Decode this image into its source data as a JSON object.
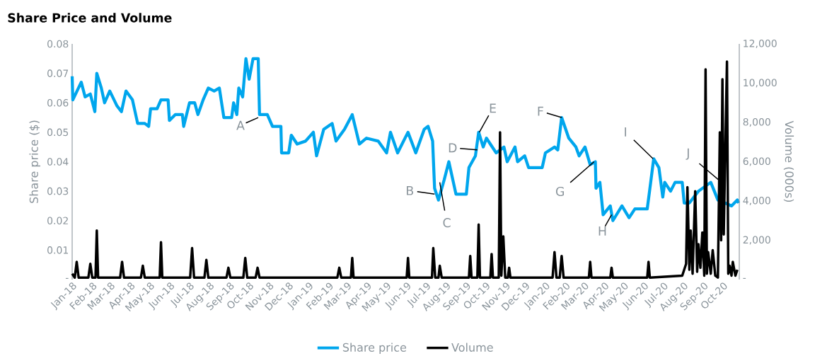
{
  "chart_data": {
    "type": "line",
    "title": "Share Price and Volume",
    "ylabel": "Share price ($)",
    "y2label": "Volume (000s)",
    "xlim": [
      "2018-01-01",
      "2020-10-26"
    ],
    "xticks": [
      {
        "value": "2018-01-01",
        "label": "Jan-18"
      },
      {
        "value": "2018-02-01",
        "label": "Feb-18"
      },
      {
        "value": "2018-03-01",
        "label": "Mar-18"
      },
      {
        "value": "2018-04-01",
        "label": "Apr-18"
      },
      {
        "value": "2018-05-01",
        "label": "May-18"
      },
      {
        "value": "2018-06-01",
        "label": "Jun-18"
      },
      {
        "value": "2018-07-01",
        "label": "Jul-18"
      },
      {
        "value": "2018-08-01",
        "label": "Aug-18"
      },
      {
        "value": "2018-09-01",
        "label": "Sep-18"
      },
      {
        "value": "2018-10-01",
        "label": "Oct-18"
      },
      {
        "value": "2018-11-01",
        "label": "Nov-18"
      },
      {
        "value": "2018-12-01",
        "label": "Dec-18"
      },
      {
        "value": "2019-01-01",
        "label": "Jan-19"
      },
      {
        "value": "2019-02-01",
        "label": "Feb-19"
      },
      {
        "value": "2019-03-01",
        "label": "Mar-19"
      },
      {
        "value": "2019-04-01",
        "label": "Apr-19"
      },
      {
        "value": "2019-05-01",
        "label": "May-19"
      },
      {
        "value": "2019-06-01",
        "label": "Jun-19"
      },
      {
        "value": "2019-07-01",
        "label": "Jul-19"
      },
      {
        "value": "2019-08-01",
        "label": "Aug-19"
      },
      {
        "value": "2019-09-01",
        "label": "Sep-19"
      },
      {
        "value": "2019-10-01",
        "label": "Oct-19"
      },
      {
        "value": "2019-11-01",
        "label": "Nov-19"
      },
      {
        "value": "2019-12-01",
        "label": "Dec-19"
      },
      {
        "value": "2020-01-01",
        "label": "Jan-20"
      },
      {
        "value": "2020-02-01",
        "label": "Feb-20"
      },
      {
        "value": "2020-03-01",
        "label": "Mar-20"
      },
      {
        "value": "2020-04-01",
        "label": "Apr-20"
      },
      {
        "value": "2020-05-01",
        "label": "May-20"
      },
      {
        "value": "2020-06-01",
        "label": "Jun-20"
      },
      {
        "value": "2020-07-01",
        "label": "Jul-20"
      },
      {
        "value": "2020-08-01",
        "label": "Aug-20"
      },
      {
        "value": "2020-09-01",
        "label": "Sep-20"
      },
      {
        "value": "2020-10-01",
        "label": "Oct-20"
      }
    ],
    "ylim": [
      0,
      0.08
    ],
    "yticks": [
      {
        "value": 0,
        "label": "-"
      },
      0.01,
      0.02,
      0.03,
      0.04,
      0.05,
      0.06,
      0.07,
      0.08
    ],
    "y2lim": [
      0,
      12000
    ],
    "y2ticks": [
      {
        "value": 0,
        "label": "-"
      },
      {
        "value": 2000,
        "label": "2,000"
      },
      {
        "value": 4000,
        "label": "4,000"
      },
      {
        "value": 6000,
        "label": "6,000"
      },
      {
        "value": 8000,
        "label": "8,000"
      },
      {
        "value": 10000,
        "label": "10,000"
      },
      {
        "value": 12000,
        "label": "12,000"
      }
    ],
    "grid": false,
    "legend": "bottom",
    "series": [
      {
        "name": "Share price",
        "color": "#00a6ed",
        "x": [
          "2018-01-01",
          "2018-01-02",
          "2018-01-15",
          "2018-01-21",
          "2018-01-29",
          "2018-02-05",
          "2018-02-08",
          "2018-02-15",
          "2018-02-20",
          "2018-02-28",
          "2018-03-11",
          "2018-03-18",
          "2018-03-25",
          "2018-04-04",
          "2018-04-12",
          "2018-04-23",
          "2018-04-29",
          "2018-05-02",
          "2018-05-12",
          "2018-05-18",
          "2018-05-29",
          "2018-05-31",
          "2018-06-09",
          "2018-06-20",
          "2018-06-22",
          "2018-07-01",
          "2018-07-09",
          "2018-07-14",
          "2018-07-22",
          "2018-07-30",
          "2018-08-08",
          "2018-08-16",
          "2018-08-23",
          "2018-09-04",
          "2018-09-07",
          "2018-09-12",
          "2018-09-15",
          "2018-09-21",
          "2018-09-26",
          "2018-10-01",
          "2018-10-07",
          "2018-10-15",
          "2018-10-17",
          "2018-10-29",
          "2018-11-06",
          "2018-11-19",
          "2018-11-20",
          "2018-12-01",
          "2018-12-05",
          "2018-12-14",
          "2018-12-27",
          "2019-01-08",
          "2019-01-13",
          "2019-01-24",
          "2019-02-06",
          "2019-02-12",
          "2019-02-25",
          "2019-03-09",
          "2019-03-20",
          "2019-03-31",
          "2019-04-18",
          "2019-05-01",
          "2019-05-07",
          "2019-05-18",
          "2019-06-03",
          "2019-06-15",
          "2019-06-28",
          "2019-07-04",
          "2019-07-11",
          "2019-07-14",
          "2019-07-20",
          "2019-07-29",
          "2019-08-05",
          "2019-08-16",
          "2019-09-01",
          "2019-09-05",
          "2019-09-15",
          "2019-09-20",
          "2019-09-27",
          "2019-10-02",
          "2019-10-17",
          "2019-10-29",
          "2019-11-03",
          "2019-11-15",
          "2019-11-19",
          "2019-11-30",
          "2019-12-06",
          "2019-12-27",
          "2020-01-01",
          "2020-01-15",
          "2020-01-20",
          "2020-01-26",
          "2020-02-06",
          "2020-02-17",
          "2020-02-22",
          "2020-03-02",
          "2020-03-10",
          "2020-03-18",
          "2020-03-19",
          "2020-03-25",
          "2020-03-30",
          "2020-04-10",
          "2020-04-14",
          "2020-04-28",
          "2020-05-09",
          "2020-05-18",
          "2020-06-06",
          "2020-06-09",
          "2020-06-16",
          "2020-06-24",
          "2020-06-30",
          "2020-07-03",
          "2020-07-12",
          "2020-07-19",
          "2020-07-30",
          "2020-08-02",
          "2020-08-10",
          "2020-08-24",
          "2020-09-12",
          "2020-09-23",
          "2020-10-04",
          "2020-10-14",
          "2020-10-23",
          "2020-10-25"
        ],
        "values": [
          0.069,
          0.061,
          0.067,
          0.062,
          0.063,
          0.057,
          0.07,
          0.065,
          0.06,
          0.064,
          0.059,
          0.057,
          0.064,
          0.061,
          0.053,
          0.053,
          0.052,
          0.058,
          0.058,
          0.061,
          0.061,
          0.054,
          0.056,
          0.056,
          0.052,
          0.06,
          0.06,
          0.056,
          0.061,
          0.065,
          0.064,
          0.065,
          0.055,
          0.055,
          0.06,
          0.056,
          0.065,
          0.062,
          0.075,
          0.068,
          0.075,
          0.075,
          0.056,
          0.056,
          0.052,
          0.052,
          0.043,
          0.043,
          0.049,
          0.046,
          0.047,
          0.05,
          0.042,
          0.051,
          0.053,
          0.047,
          0.051,
          0.056,
          0.046,
          0.048,
          0.047,
          0.043,
          0.05,
          0.043,
          0.05,
          0.043,
          0.051,
          0.052,
          0.047,
          0.031,
          0.027,
          0.034,
          0.04,
          0.029,
          0.029,
          0.038,
          0.042,
          0.05,
          0.045,
          0.048,
          0.043,
          0.045,
          0.04,
          0.045,
          0.04,
          0.042,
          0.038,
          0.038,
          0.043,
          0.045,
          0.044,
          0.055,
          0.048,
          0.045,
          0.042,
          0.045,
          0.039,
          0.04,
          0.031,
          0.033,
          0.022,
          0.025,
          0.02,
          0.025,
          0.021,
          0.024,
          0.024,
          0.029,
          0.041,
          0.038,
          0.028,
          0.033,
          0.03,
          0.033,
          0.033,
          0.026,
          0.026,
          0.03,
          0.033,
          0.027,
          0.026,
          0.025,
          0.027,
          0.026
        ]
      },
      {
        "name": "Volume",
        "color": "#000000",
        "axis": "y2",
        "x": [
          "2018-01-01",
          "2018-01-05",
          "2018-01-08",
          "2018-01-11",
          "2018-01-26",
          "2018-01-29",
          "2018-02-01",
          "2018-02-06",
          "2018-02-08",
          "2018-02-10",
          "2018-03-16",
          "2018-03-19",
          "2018-03-22",
          "2018-04-17",
          "2018-04-20",
          "2018-04-23",
          "2018-05-16",
          "2018-05-18",
          "2018-05-20",
          "2018-07-02",
          "2018-07-05",
          "2018-07-08",
          "2018-07-24",
          "2018-07-27",
          "2018-07-30",
          "2018-08-27",
          "2018-08-30",
          "2018-09-02",
          "2018-09-22",
          "2018-09-25",
          "2018-09-28",
          "2018-10-11",
          "2018-10-14",
          "2018-10-17",
          "2019-02-14",
          "2019-02-17",
          "2019-02-20",
          "2019-03-07",
          "2019-03-09",
          "2019-03-11",
          "2019-06-01",
          "2019-06-03",
          "2019-06-05",
          "2019-07-10",
          "2019-07-12",
          "2019-07-15",
          "2019-07-20",
          "2019-07-22",
          "2019-07-25",
          "2019-09-05",
          "2019-09-07",
          "2019-09-09",
          "2019-09-18",
          "2019-09-20",
          "2019-09-22",
          "2019-10-08",
          "2019-10-10",
          "2019-10-12",
          "2019-10-21",
          "2019-10-23",
          "2019-10-25",
          "2019-10-28",
          "2019-10-31",
          "2019-11-04",
          "2019-11-06",
          "2019-11-08",
          "2020-01-12",
          "2020-01-15",
          "2020-01-18",
          "2020-01-23",
          "2020-01-26",
          "2020-01-29",
          "2020-03-08",
          "2020-03-10",
          "2020-03-12",
          "2020-04-10",
          "2020-04-12",
          "2020-04-14",
          "2020-06-06",
          "2020-06-08",
          "2020-06-10",
          "2020-07-30",
          "2020-08-05",
          "2020-08-07",
          "2020-08-10",
          "2020-08-12",
          "2020-08-15",
          "2020-08-19",
          "2020-08-22",
          "2020-08-24",
          "2020-08-27",
          "2020-08-30",
          "2020-09-02",
          "2020-09-04",
          "2020-09-06",
          "2020-09-08",
          "2020-09-12",
          "2020-09-15",
          "2020-09-19",
          "2020-09-23",
          "2020-09-26",
          "2020-09-28",
          "2020-09-30",
          "2020-10-02",
          "2020-10-07",
          "2020-10-09",
          "2020-10-11",
          "2020-10-14",
          "2020-10-16",
          "2020-10-20",
          "2020-10-23"
        ],
        "values": [
          300,
          100,
          900,
          100,
          100,
          800,
          100,
          100,
          2500,
          100,
          100,
          900,
          100,
          100,
          700,
          100,
          100,
          1900,
          100,
          100,
          1600,
          100,
          100,
          1000,
          100,
          100,
          600,
          100,
          100,
          1100,
          100,
          100,
          600,
          100,
          100,
          600,
          100,
          100,
          1100,
          100,
          100,
          1100,
          100,
          100,
          1600,
          100,
          100,
          700,
          100,
          100,
          1200,
          100,
          100,
          2800,
          100,
          100,
          1300,
          100,
          100,
          7500,
          200,
          2200,
          100,
          100,
          600,
          100,
          100,
          1400,
          100,
          100,
          1200,
          100,
          100,
          900,
          100,
          100,
          600,
          100,
          100,
          900,
          100,
          200,
          800,
          4700,
          500,
          2500,
          300,
          4500,
          400,
          1800,
          600,
          2400,
          200,
          10700,
          300,
          1400,
          300,
          1500,
          200,
          100,
          7500,
          2000,
          10200,
          2300,
          11100,
          300,
          700,
          200,
          900,
          200,
          500
        ]
      }
    ],
    "annotations": [
      {
        "text": "A",
        "x": "2018-10-15",
        "y": 0.055
      },
      {
        "text": "B",
        "x": "2019-07-14",
        "y": 0.029
      },
      {
        "text": "C",
        "x": "2019-07-22",
        "y": 0.033
      },
      {
        "text": "D",
        "x": "2019-09-18",
        "y": 0.044
      },
      {
        "text": "E",
        "x": "2019-09-21",
        "y": 0.05
      },
      {
        "text": "F",
        "x": "2020-01-26",
        "y": 0.055
      },
      {
        "text": "G",
        "x": "2020-03-16",
        "y": 0.04
      },
      {
        "text": "H",
        "x": "2020-04-12",
        "y": 0.022
      },
      {
        "text": "I",
        "x": "2020-06-15",
        "y": 0.041
      },
      {
        "text": "J",
        "x": "2020-10-04",
        "y": 0.032
      }
    ]
  }
}
